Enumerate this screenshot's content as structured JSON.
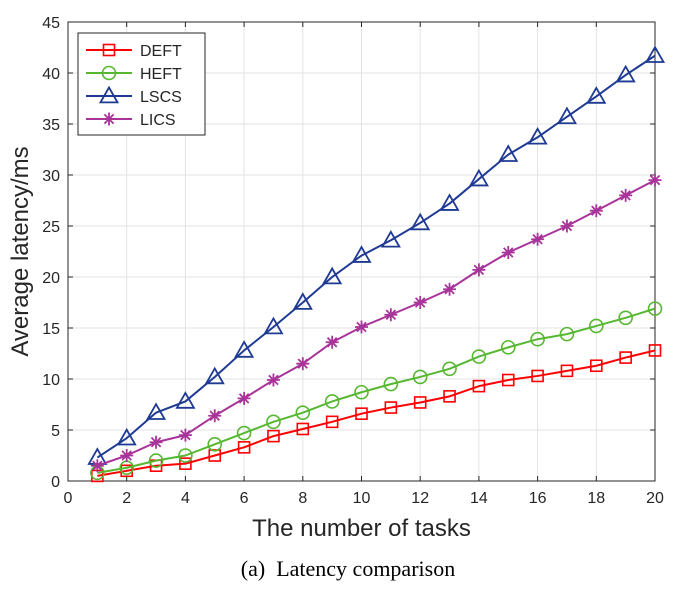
{
  "chart_data": {
    "type": "line",
    "title": "",
    "caption": "(a)  Latency comparison",
    "xlabel": "The number of tasks",
    "ylabel": "Average latency/ms",
    "xlim": [
      0,
      20
    ],
    "ylim": [
      0,
      45
    ],
    "xticks": [
      0,
      2,
      4,
      6,
      8,
      10,
      12,
      14,
      16,
      18,
      20
    ],
    "yticks": [
      0,
      5,
      10,
      15,
      20,
      25,
      30,
      35,
      40,
      45
    ],
    "grid": true,
    "legend_position": "top-left",
    "x": [
      1,
      2,
      3,
      4,
      5,
      6,
      7,
      8,
      9,
      10,
      11,
      12,
      13,
      14,
      15,
      16,
      17,
      18,
      19,
      20
    ],
    "series": [
      {
        "name": "DEFT",
        "color": "#ff0000",
        "marker": "square",
        "values": [
          0.5,
          1.0,
          1.5,
          1.7,
          2.5,
          3.3,
          4.4,
          5.1,
          5.8,
          6.6,
          7.2,
          7.7,
          8.3,
          9.3,
          9.9,
          10.3,
          10.8,
          11.3,
          12.1,
          12.8
        ]
      },
      {
        "name": "HEFT",
        "color": "#56b830",
        "marker": "circle",
        "values": [
          0.8,
          1.3,
          2.0,
          2.5,
          3.6,
          4.7,
          5.8,
          6.7,
          7.8,
          8.7,
          9.5,
          10.2,
          11.0,
          12.2,
          13.1,
          13.9,
          14.4,
          15.2,
          16.0,
          16.9
        ]
      },
      {
        "name": "LSCS",
        "color": "#1f3a93",
        "marker": "triangle",
        "values": [
          2.3,
          4.2,
          6.7,
          7.8,
          10.2,
          12.8,
          15.1,
          17.5,
          20.0,
          22.1,
          23.6,
          25.3,
          27.2,
          29.6,
          32.0,
          33.7,
          35.7,
          37.7,
          39.8,
          41.7
        ]
      },
      {
        "name": "LICS",
        "color": "#a8349a",
        "marker": "asterisk",
        "values": [
          1.5,
          2.5,
          3.8,
          4.5,
          6.4,
          8.1,
          9.9,
          11.5,
          13.6,
          15.1,
          16.3,
          17.5,
          18.8,
          20.7,
          22.4,
          23.7,
          25.0,
          26.5,
          28.0,
          29.5
        ]
      }
    ]
  }
}
